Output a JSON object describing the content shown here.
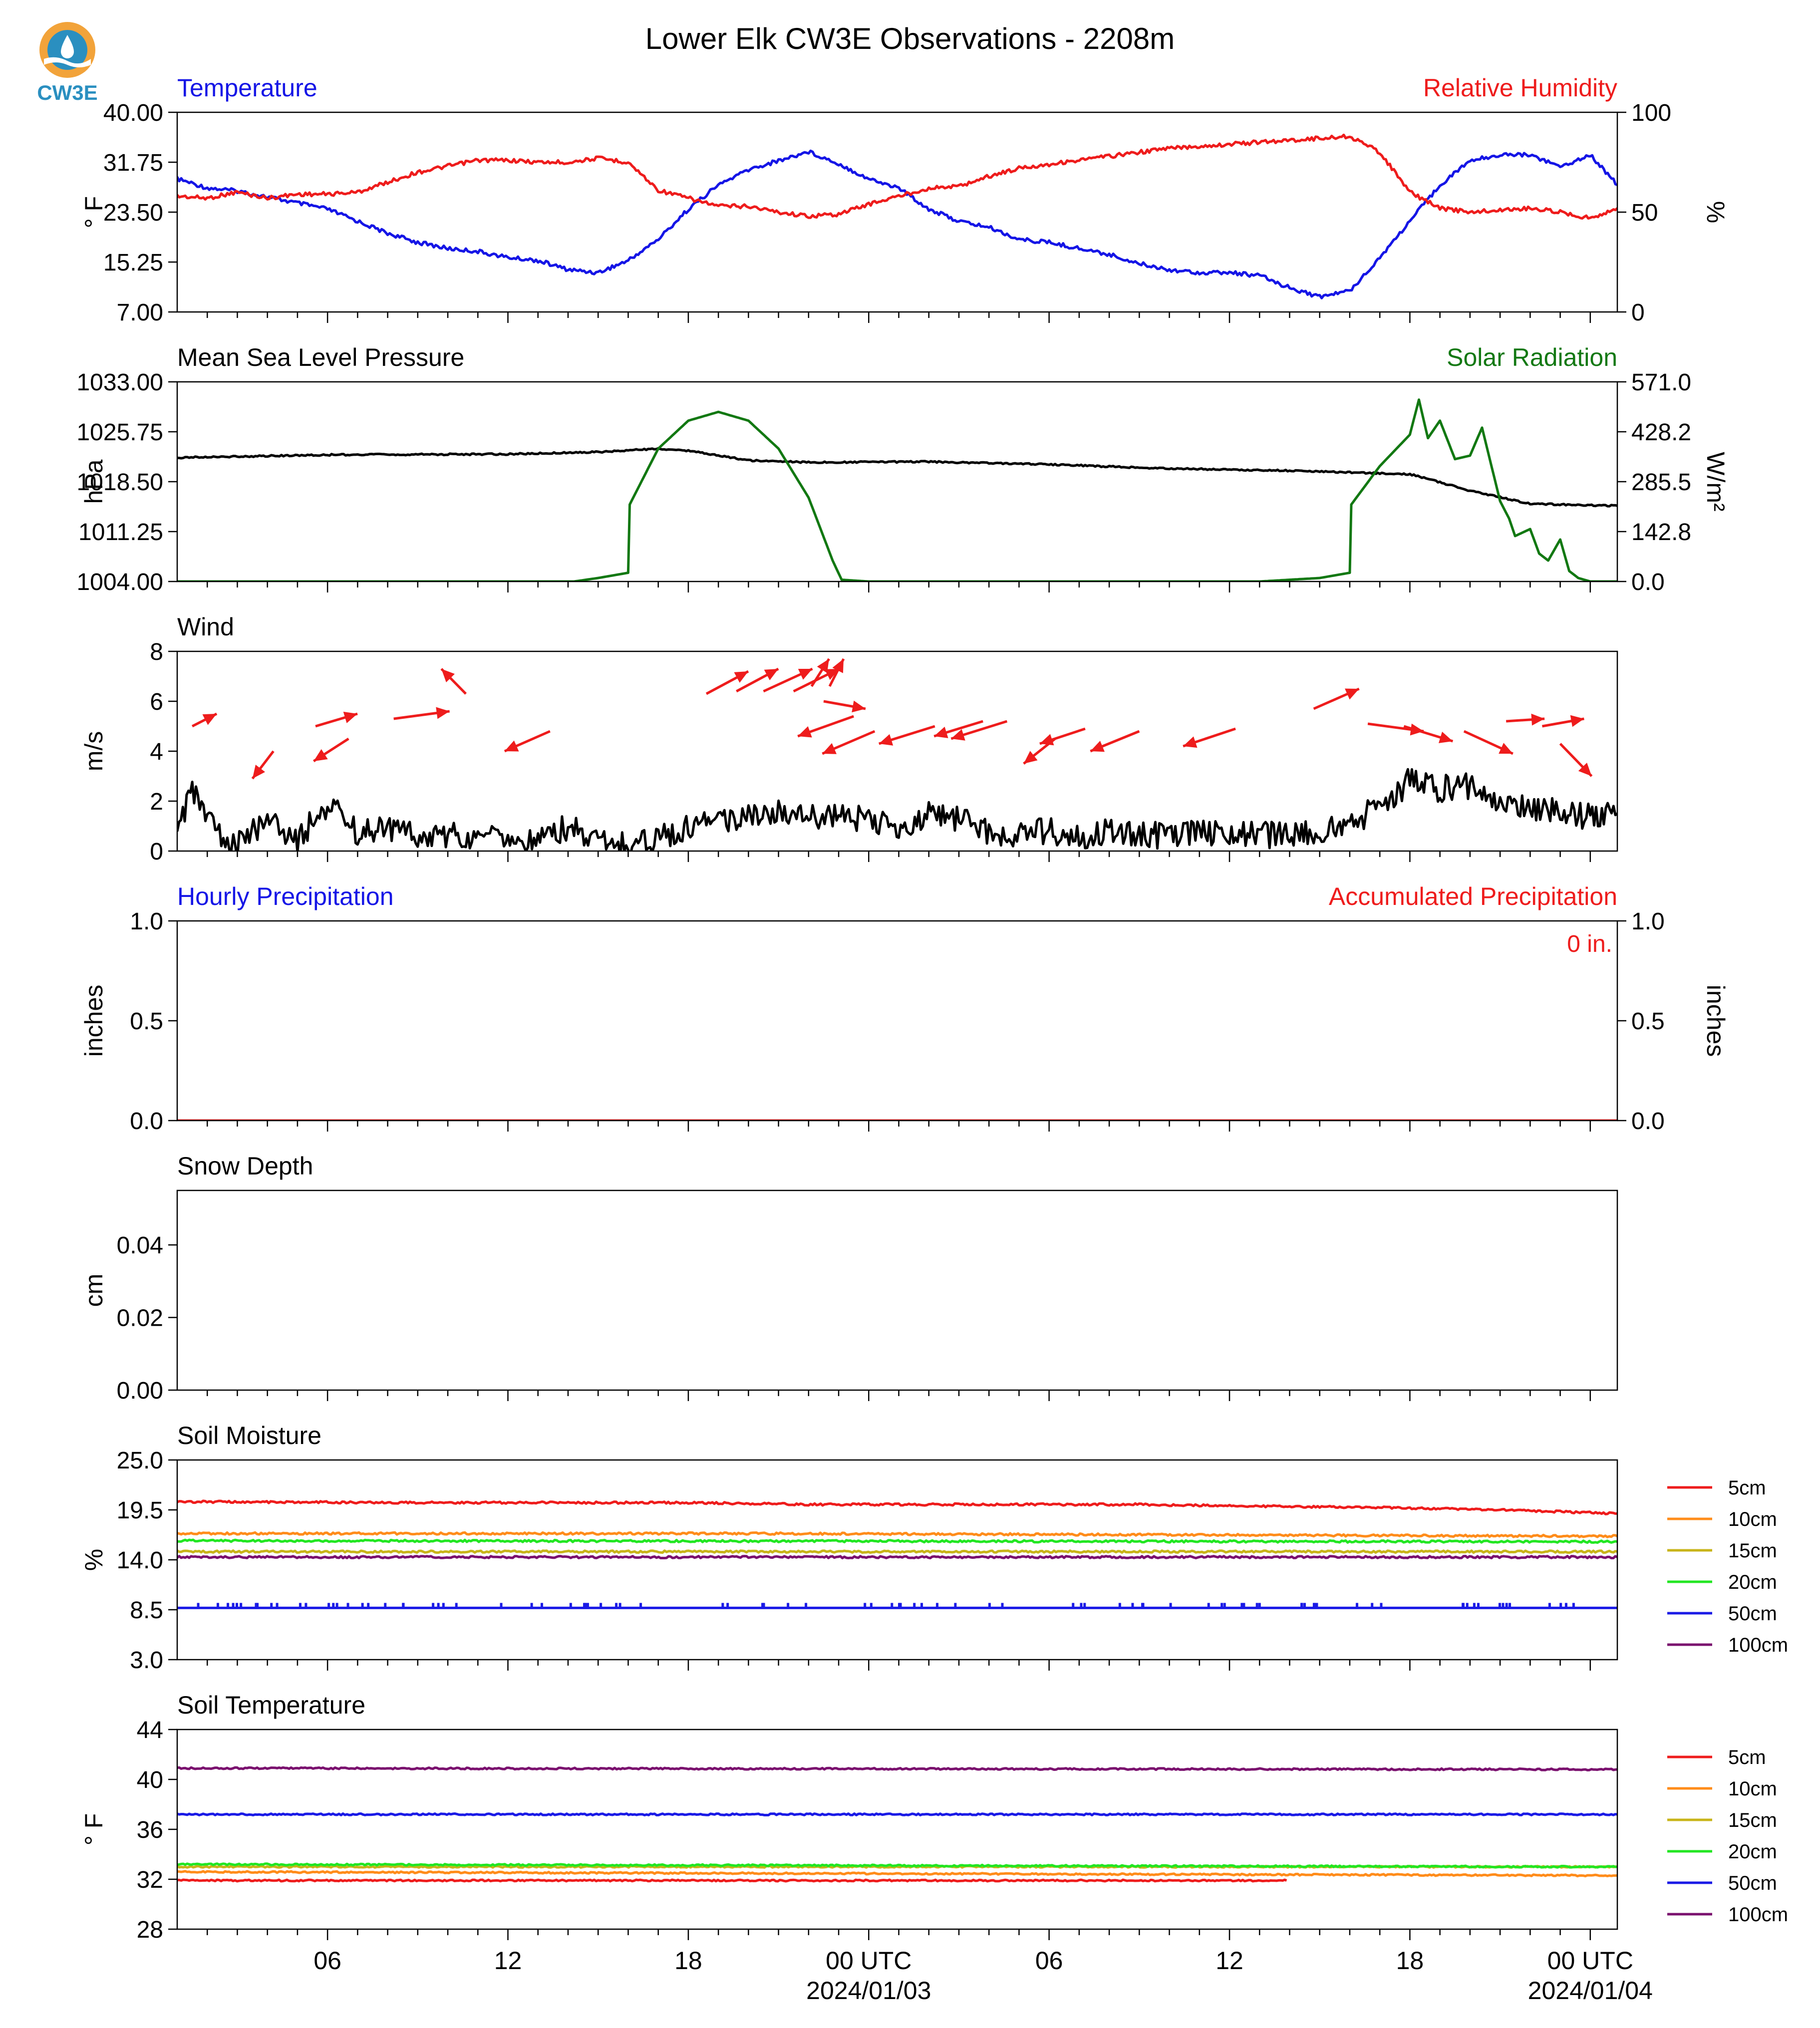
{
  "logo": {
    "text": "CW3E"
  },
  "title": "Lower Elk CW3E Observations - 2208m",
  "colors": {
    "temperature": "#1515e6",
    "humidity": "#ee1c1c",
    "solar": "#127812",
    "black": "#000000",
    "soil_5cm": "#ee1c1c",
    "soil_10cm": "#ff8c1a",
    "soil_15cm": "#c8b419",
    "soil_20cm": "#22e622",
    "soil_50cm": "#1a1ae6",
    "soil_100cm": "#7a0f6e",
    "logo_orange": "#f2a33a",
    "logo_blue": "#2a8fc0"
  },
  "x_axis": {
    "ticks": [
      {
        "hour": 6,
        "label": "06"
      },
      {
        "hour": 12,
        "label": "12"
      },
      {
        "hour": 18,
        "label": "18"
      },
      {
        "hour": 24,
        "label": "00 UTC",
        "date": "2024/01/03"
      },
      {
        "hour": 30,
        "label": "06"
      },
      {
        "hour": 36,
        "label": "12"
      },
      {
        "hour": 42,
        "label": "18"
      },
      {
        "hour": 48,
        "label": "00 UTC",
        "date": "2024/01/04"
      }
    ],
    "range_hours": [
      1,
      48.9
    ]
  },
  "chart_data": [
    {
      "type": "line",
      "title_left": "Temperature",
      "title_right": "Relative Humidity",
      "ylabel": "° F",
      "ylabel_right": "%",
      "yticks": [
        "7.00",
        "15.25",
        "23.50",
        "31.75",
        "40.00"
      ],
      "ylim": [
        7,
        40
      ],
      "yticks_right": [
        "0",
        "50",
        "100"
      ],
      "ylim_right": [
        0,
        100
      ],
      "series": [
        {
          "name": "Temperature",
          "axis": "left",
          "color_key": "temperature",
          "x": [
            1,
            2,
            3,
            4,
            5,
            6,
            7,
            8,
            9,
            10,
            11,
            12,
            13,
            14,
            15,
            16,
            17,
            18,
            19,
            20,
            21,
            22,
            23,
            24,
            25,
            26,
            27,
            28,
            29,
            30,
            31,
            32,
            33,
            34,
            35,
            36,
            37,
            38,
            39,
            40,
            41,
            42,
            43,
            44,
            45,
            46,
            47,
            48,
            48.9
          ],
          "y": [
            29,
            27.5,
            27,
            26,
            25,
            24,
            22,
            20,
            18.5,
            17.5,
            17,
            16,
            15.5,
            14,
            13.5,
            15.5,
            19,
            24,
            28,
            30.5,
            32,
            33.5,
            31.5,
            29,
            27.5,
            24,
            22,
            21,
            19,
            18.5,
            17.5,
            16.5,
            15,
            14,
            13.5,
            13.5,
            13,
            11,
            9.5,
            10.5,
            16,
            22,
            28,
            32,
            33,
            33,
            31,
            33,
            28
          ]
        },
        {
          "name": "Relative Humidity",
          "axis": "right",
          "color_key": "humidity",
          "x": [
            1,
            2,
            3,
            4,
            5,
            6,
            7,
            8,
            9,
            10,
            11,
            12,
            13,
            14,
            15,
            16,
            17,
            18,
            19,
            20,
            21,
            22,
            23,
            24,
            25,
            26,
            27,
            28,
            29,
            30,
            31,
            32,
            33,
            34,
            35,
            36,
            37,
            38,
            39,
            40,
            41,
            42,
            43,
            44,
            45,
            46,
            47,
            48,
            48.9
          ],
          "y": [
            58,
            57,
            60,
            57,
            59,
            59,
            60,
            65,
            70,
            73,
            76,
            76,
            75,
            75,
            77,
            75,
            61,
            57,
            53,
            53,
            50,
            48,
            49,
            54,
            58,
            62,
            63,
            68,
            72,
            74,
            76,
            78,
            80,
            82,
            83,
            84,
            85,
            86,
            87,
            88,
            80,
            60,
            52,
            50,
            51,
            52,
            50,
            47,
            52
          ]
        }
      ]
    },
    {
      "type": "line",
      "title_left": "Mean Sea Level Pressure",
      "title_right": "Solar Radiation",
      "ylabel": "hPa",
      "ylabel_right": "W/m²",
      "yticks": [
        "1004.00",
        "1011.25",
        "1018.50",
        "1025.75",
        "1033.00"
      ],
      "ylim": [
        1004,
        1033
      ],
      "yticks_right": [
        "0.0",
        "142.8",
        "285.5",
        "428.2",
        "571.0"
      ],
      "ylim_right": [
        0,
        571
      ],
      "series": [
        {
          "name": "Mean Sea Level Pressure",
          "axis": "left",
          "color_key": "black",
          "x": [
            1,
            6,
            12,
            15,
            17,
            18,
            20,
            22,
            26,
            30,
            34,
            38,
            42,
            44,
            46,
            48.9
          ],
          "y": [
            1022.0,
            1022.4,
            1022.5,
            1022.8,
            1023.3,
            1023.0,
            1021.6,
            1021.3,
            1021.4,
            1021.0,
            1020.4,
            1020.1,
            1019.6,
            1017.2,
            1015.3,
            1015.0
          ]
        },
        {
          "name": "Solar Radiation",
          "axis": "right",
          "color_key": "solar",
          "x": [
            1,
            14.2,
            15.0,
            16.0,
            16.05,
            17,
            18,
            19,
            20,
            21,
            22,
            22.8,
            23.1,
            24,
            37,
            39,
            40,
            40.05,
            41,
            42,
            42.3,
            42.6,
            43,
            43.5,
            44,
            44.4,
            45,
            45.3,
            45.5,
            46,
            46.3,
            46.6,
            47,
            47.3,
            47.6,
            48,
            48.9
          ],
          "y": [
            0,
            0,
            10,
            25,
            220,
            380,
            460,
            485,
            460,
            380,
            240,
            60,
            5,
            0,
            0,
            10,
            25,
            220,
            330,
            420,
            520,
            410,
            460,
            350,
            360,
            440,
            230,
            180,
            130,
            150,
            80,
            60,
            120,
            30,
            10,
            0,
            0
          ]
        }
      ]
    },
    {
      "type": "line",
      "title_left": "Wind",
      "ylabel": "m/s",
      "yticks": [
        "0",
        "2",
        "4",
        "6",
        "8"
      ],
      "ylim": [
        0,
        8
      ],
      "series": [
        {
          "name": "Wind",
          "color_key": "black",
          "x": [
            1,
            1.5,
            2,
            3,
            4,
            5,
            6,
            7,
            8,
            9,
            10,
            11,
            12,
            13,
            14,
            15,
            16,
            17,
            18,
            19,
            20,
            21,
            22,
            23,
            24,
            25,
            26,
            27,
            28,
            29,
            30,
            31,
            32,
            33,
            34,
            35,
            36,
            37,
            38,
            39,
            40,
            41,
            42,
            43,
            44,
            45,
            46,
            47,
            48,
            48.9
          ],
          "y": [
            0.5,
            2.5,
            1.2,
            0.2,
            1.2,
            0.5,
            1.8,
            0.8,
            0.8,
            0.6,
            0.6,
            0.5,
            0.6,
            0.4,
            1.0,
            0.4,
            0.2,
            0.5,
            1.0,
            1.2,
            1.4,
            1.6,
            1.5,
            1.3,
            1.4,
            0.6,
            1.5,
            1.2,
            0.8,
            0.7,
            0.8,
            0.6,
            0.8,
            0.7,
            0.6,
            0.7,
            0.6,
            0.7,
            0.6,
            0.8,
            1.0,
            1.8,
            2.8,
            2.5,
            2.6,
            2.0,
            1.8,
            1.5,
            1.4,
            1.5
          ]
        },
        {
          "name": "Wind vectors",
          "type": "arrows",
          "color_key": "humidity",
          "x": [
            1.5,
            4.2,
            5.6,
            6.7,
            8.2,
            10.6,
            13.4,
            18.6,
            19.6,
            20.5,
            21.5,
            22.1,
            22.7,
            22.5,
            23.5,
            24.2,
            26.2,
            27.8,
            28.6,
            30.2,
            31.2,
            33.0,
            36.2,
            38.8,
            40.6,
            41.8,
            43.8,
            45.2,
            46.4,
            47.0
          ],
          "y": [
            5.0,
            4.0,
            5.0,
            4.5,
            5.3,
            6.3,
            4.8,
            6.3,
            6.4,
            6.4,
            6.4,
            6.6,
            6.6,
            6.0,
            5.4,
            4.8,
            5.0,
            5.2,
            5.2,
            4.5,
            4.9,
            4.8,
            4.9,
            5.7,
            5.1,
            5.0,
            4.8,
            5.2,
            5.0,
            4.3
          ],
          "u": [
            0.7,
            -0.6,
            1.2,
            -1.0,
            1.6,
            -0.7,
            -1.3,
            1.2,
            1.2,
            1.4,
            1.3,
            0.5,
            0.4,
            1.2,
            -1.6,
            -1.5,
            -1.6,
            -1.4,
            -1.6,
            -0.9,
            -1.3,
            -1.4,
            -1.5,
            1.3,
            1.6,
            1.4,
            1.4,
            1.1,
            1.2,
            0.9
          ],
          "v": [
            0.5,
            -1.1,
            0.5,
            -0.9,
            0.3,
            1.0,
            -0.8,
            0.9,
            0.9,
            0.9,
            0.9,
            1.1,
            1.1,
            -0.3,
            -0.8,
            -0.9,
            -0.7,
            -0.6,
            -0.7,
            -1.0,
            -0.6,
            -0.8,
            -0.7,
            0.8,
            -0.3,
            -0.6,
            -0.9,
            0.1,
            0.3,
            -1.3
          ]
        }
      ]
    },
    {
      "type": "line",
      "title_left": "Hourly Precipitation",
      "title_right": "Accumulated Precipitation",
      "annotation": "0 in.",
      "ylabel": "inches",
      "ylabel_right": "inches",
      "yticks": [
        "0.0",
        "0.5",
        "1.0"
      ],
      "ylim": [
        0,
        1
      ],
      "yticks_right": [
        "0.0",
        "0.5",
        "1.0"
      ],
      "ylim_right": [
        0,
        1
      ],
      "series": [
        {
          "name": "Hourly Precipitation",
          "axis": "left",
          "color_key": "temperature",
          "x": [
            1,
            48.9
          ],
          "y": [
            0,
            0
          ]
        },
        {
          "name": "Accumulated Precipitation",
          "axis": "right",
          "color_key": "humidity",
          "x": [
            1,
            48.9
          ],
          "y": [
            0,
            0
          ]
        }
      ]
    },
    {
      "type": "line",
      "title_left": "Snow Depth",
      "ylabel": "cm",
      "yticks": [
        "0.00",
        "0.02",
        "0.04"
      ],
      "ylim": [
        0,
        0.055
      ],
      "series": []
    },
    {
      "type": "line",
      "title_left": "Soil Moisture",
      "ylabel": "%",
      "yticks": [
        "3.0",
        "8.5",
        "14.0",
        "19.5",
        "25.0"
      ],
      "ylim": [
        3,
        25
      ],
      "legend": "right",
      "series": [
        {
          "name": "5cm",
          "color_key": "soil_5cm",
          "x": [
            1,
            10,
            18,
            22,
            28,
            33,
            37,
            40,
            44,
            47,
            48.9
          ],
          "y": [
            20.4,
            20.3,
            20.3,
            20.1,
            20.1,
            20.1,
            19.9,
            19.8,
            19.6,
            19.3,
            19.1
          ]
        },
        {
          "name": "10cm",
          "color_key": "soil_10cm",
          "x": [
            1,
            20,
            48.9
          ],
          "y": [
            16.9,
            16.9,
            16.6
          ]
        },
        {
          "name": "15cm",
          "color_key": "soil_15cm",
          "x": [
            1,
            48.9
          ],
          "y": [
            14.9,
            14.9
          ]
        },
        {
          "name": "20cm",
          "color_key": "soil_20cm",
          "x": [
            1,
            48.9
          ],
          "y": [
            16.1,
            16.0
          ]
        },
        {
          "name": "50cm",
          "color_key": "soil_50cm",
          "x": [
            1,
            48.9
          ],
          "y": [
            8.7,
            8.7
          ]
        },
        {
          "name": "100cm",
          "color_key": "soil_100cm",
          "x": [
            1,
            48.9
          ],
          "y": [
            14.3,
            14.3
          ]
        }
      ]
    },
    {
      "type": "line",
      "title_left": "Soil Temperature",
      "ylabel": "° F",
      "yticks": [
        "28",
        "32",
        "36",
        "40",
        "44"
      ],
      "ylim": [
        28,
        44
      ],
      "legend": "right",
      "series": [
        {
          "name": "5cm",
          "color_key": "soil_5cm",
          "x": [
            1,
            37.9
          ],
          "y": [
            31.9,
            31.9
          ]
        },
        {
          "name": "10cm",
          "color_key": "soil_10cm",
          "x": [
            1,
            48.9
          ],
          "y": [
            32.6,
            32.3
          ]
        },
        {
          "name": "15cm",
          "color_key": "soil_15cm",
          "x": [
            1,
            48.9
          ],
          "y": [
            33.0,
            33.0
          ]
        },
        {
          "name": "20cm",
          "color_key": "soil_20cm",
          "x": [
            1,
            48.9
          ],
          "y": [
            33.2,
            33.0
          ]
        },
        {
          "name": "50cm",
          "color_key": "soil_50cm",
          "x": [
            1,
            48.9
          ],
          "y": [
            37.2,
            37.2
          ]
        },
        {
          "name": "100cm",
          "color_key": "soil_100cm",
          "x": [
            1,
            48.9
          ],
          "y": [
            40.9,
            40.8
          ]
        }
      ]
    }
  ]
}
